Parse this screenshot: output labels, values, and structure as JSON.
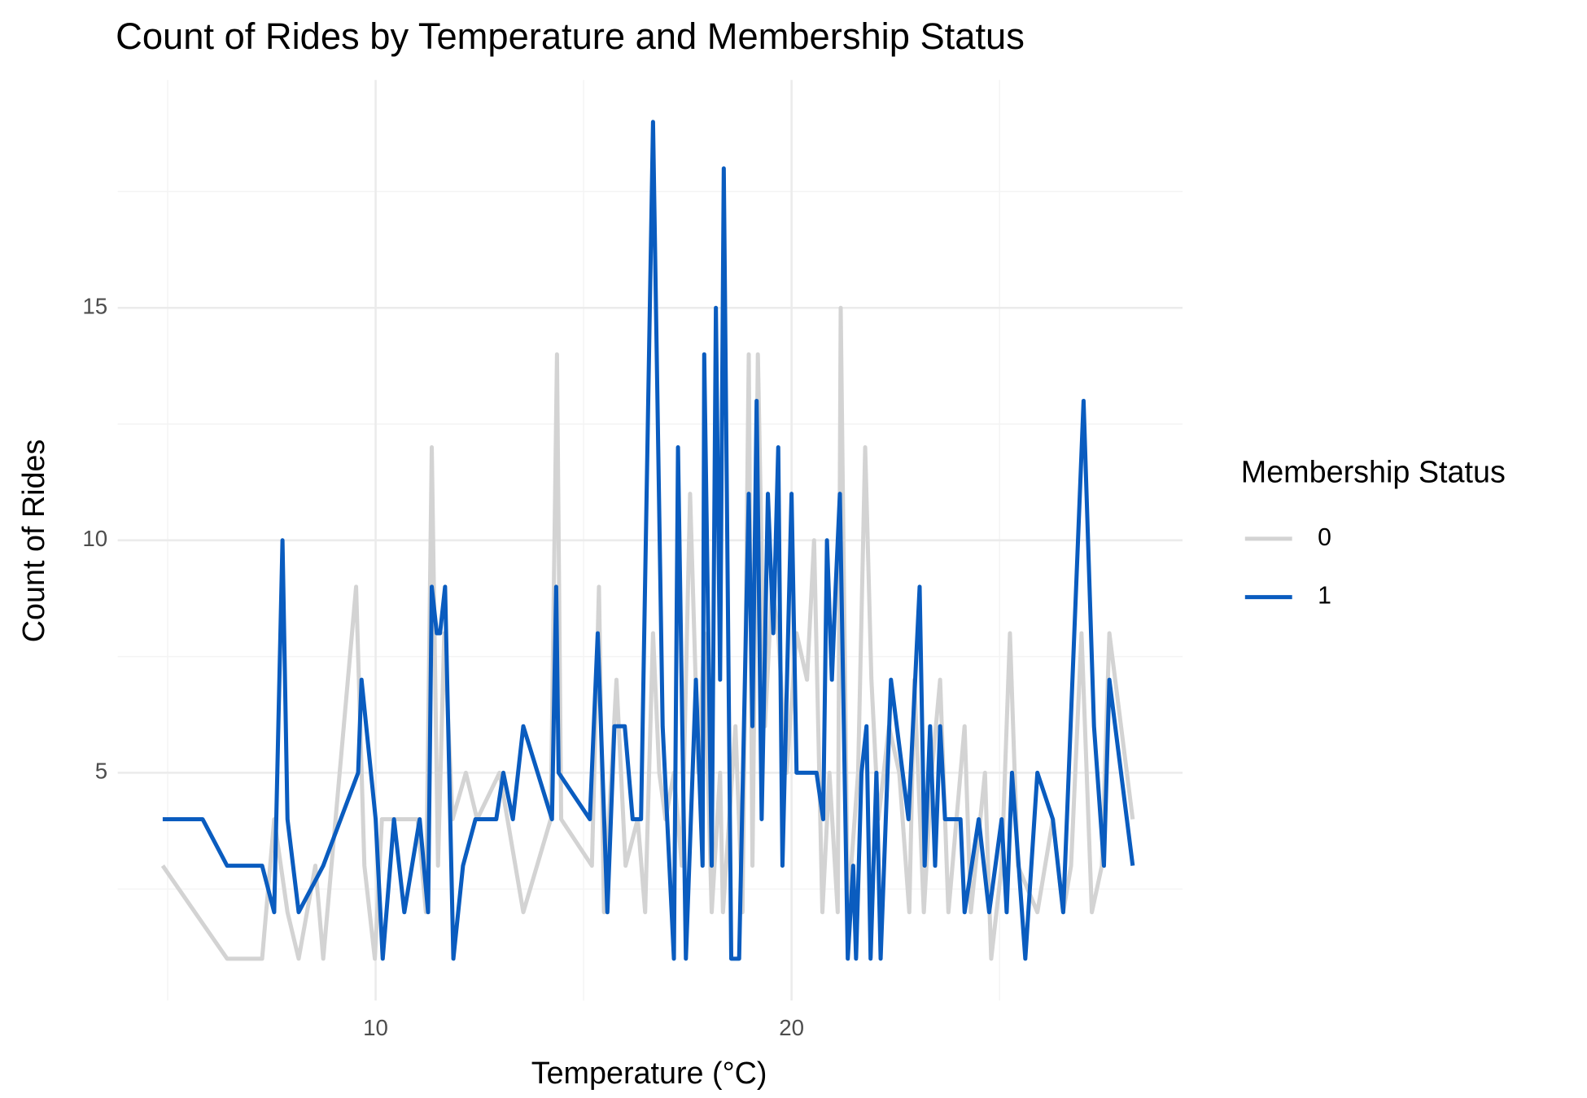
{
  "chart_data": {
    "type": "line",
    "title": "Count of Rides by Temperature and Membership Status",
    "xlabel": "Temperature (°C)",
    "ylabel": "Count of Rides",
    "legend_title": "Membership Status",
    "legend": "right",
    "grid": true,
    "xlim": [
      3.8,
      29.4
    ],
    "xticks": [
      10,
      20
    ],
    "xminorticks": [
      5,
      15,
      25
    ],
    "ylim": [
      0.1,
      19.9
    ],
    "yticks": [
      5,
      10,
      15
    ],
    "yminorticks": [
      2.5,
      7.5,
      12.5,
      17.5
    ],
    "series": [
      {
        "name": "0",
        "color": "#d3d3d3",
        "x": [
          4.88,
          6.43,
          7.27,
          7.56,
          7.88,
          8.15,
          8.55,
          8.74,
          9.53,
          9.73,
          9.98,
          10.15,
          11.01,
          11.21,
          11.35,
          11.5,
          11.65,
          11.85,
          12.17,
          12.44,
          12.98,
          13.55,
          14.21,
          14.36,
          14.46,
          15.2,
          15.37,
          15.49,
          15.79,
          16.01,
          16.3,
          16.48,
          16.67,
          16.82,
          16.97,
          17.17,
          17.36,
          17.56,
          17.76,
          17.9,
          18.08,
          18.28,
          18.35,
          18.65,
          18.82,
          18.97,
          19.06,
          19.19,
          19.36,
          19.53,
          19.68,
          19.88,
          20.12,
          20.37,
          20.54,
          20.74,
          20.91,
          21.11,
          21.18,
          21.35,
          21.6,
          21.77,
          21.92,
          22.09,
          22.34,
          22.59,
          22.83,
          22.95,
          23.18,
          23.37,
          23.57,
          23.77,
          24.16,
          24.31,
          24.65,
          24.8,
          25.05,
          25.25,
          25.44,
          25.91,
          26.28,
          26.53,
          26.72,
          26.97,
          27.22,
          27.46,
          27.64,
          28.2
        ],
        "values": [
          3,
          1,
          1,
          4,
          2,
          1,
          3,
          1,
          9,
          3,
          1,
          4,
          4,
          2,
          12,
          3,
          8,
          4,
          5,
          4,
          5,
          2,
          4,
          14,
          4,
          3,
          9,
          2,
          7,
          3,
          4,
          2,
          8,
          5,
          4,
          5,
          3,
          11,
          5,
          8,
          2,
          5,
          2,
          6,
          2,
          14,
          3,
          14,
          6,
          9,
          8,
          5,
          8,
          7,
          10,
          2,
          5,
          2,
          15,
          2,
          5,
          12,
          7,
          4,
          6,
          5,
          2,
          7,
          2,
          5,
          7,
          2,
          6,
          2,
          5,
          1,
          3,
          8,
          3,
          2,
          4,
          2,
          3,
          8,
          2,
          3,
          8,
          4
        ]
      },
      {
        "name": "1",
        "color": "#0a5cbf",
        "x": [
          4.88,
          5.84,
          6.43,
          7.27,
          7.56,
          7.76,
          7.88,
          8.15,
          8.74,
          9.58,
          9.66,
          10.0,
          10.17,
          10.44,
          10.69,
          11.06,
          11.26,
          11.35,
          11.47,
          11.55,
          11.67,
          11.87,
          12.1,
          12.4,
          12.9,
          13.07,
          13.3,
          13.55,
          14.24,
          14.34,
          14.4,
          15.15,
          15.34,
          15.57,
          15.74,
          15.99,
          16.18,
          16.38,
          16.67,
          16.9,
          17.17,
          17.27,
          17.46,
          17.7,
          17.86,
          17.9,
          18.08,
          18.18,
          18.28,
          18.37,
          18.55,
          18.74,
          18.97,
          19.06,
          19.16,
          19.28,
          19.43,
          19.56,
          19.68,
          19.78,
          20.0,
          20.12,
          20.6,
          20.76,
          20.85,
          20.97,
          21.06,
          21.16,
          21.35,
          21.48,
          21.55,
          21.68,
          21.8,
          21.9,
          22.04,
          22.14,
          22.39,
          22.81,
          23.08,
          23.2,
          23.33,
          23.45,
          23.57,
          23.69,
          24.06,
          24.16,
          24.5,
          24.75,
          25.05,
          25.17,
          25.3,
          25.62,
          25.91,
          26.28,
          26.53,
          27.02,
          27.27,
          27.51,
          27.64,
          28.2
        ],
        "values": [
          4,
          4,
          3,
          3,
          2,
          10,
          4,
          2,
          3,
          5,
          7,
          4,
          1,
          4,
          2,
          4,
          2,
          9,
          8,
          8,
          9,
          1,
          3,
          4,
          4,
          5,
          4,
          6,
          4,
          9,
          5,
          4,
          8,
          2,
          6,
          6,
          4,
          4,
          19,
          6,
          1,
          12,
          1,
          7,
          3,
          14,
          3,
          15,
          7,
          18,
          1,
          1,
          11,
          6,
          13,
          4,
          11,
          8,
          12,
          3,
          11,
          5,
          5,
          4,
          10,
          7,
          9,
          11,
          1,
          3,
          1,
          5,
          6,
          1,
          5,
          1,
          7,
          4,
          9,
          3,
          6,
          3,
          6,
          4,
          4,
          2,
          4,
          2,
          4,
          2,
          5,
          1,
          5,
          4,
          2,
          13,
          6,
          3,
          7,
          3
        ]
      }
    ]
  }
}
